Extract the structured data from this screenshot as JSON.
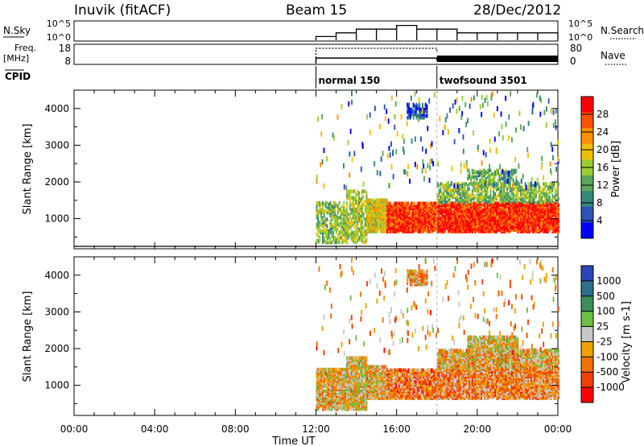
{
  "header": {
    "station": "Inuvik (fitACF)",
    "beam": "Beam 15",
    "date": "28/Dec/2012"
  },
  "sky_panel": {
    "left_label": "N.Sky",
    "right_label": "N.Search",
    "left_ticks": [
      "10^5",
      "10^0"
    ],
    "right_ticks": [
      "10^5",
      "10^0"
    ]
  },
  "freq_panel": {
    "left_label_line1": "Freq.",
    "left_label_line2": "[MHz]",
    "right_label": "Nave",
    "left_ticks": [
      "18",
      "8"
    ],
    "right_ticks": [
      "80",
      "0"
    ]
  },
  "cpid": {
    "label": "CPID",
    "modes": [
      {
        "name": "normal 150",
        "start_hour": 12.0
      },
      {
        "name": "twofsound 3501",
        "start_hour": 18.0
      }
    ]
  },
  "colors": {
    "power_scale": [
      "#0000ff",
      "#2a52b8",
      "#35877a",
      "#5aa65a",
      "#9acd32",
      "#f0c000",
      "#ff9000",
      "#ff5000",
      "#ff0000"
    ],
    "velocity_scale": [
      "#2846b4",
      "#2e6e8e",
      "#3a8f5a",
      "#6ac040",
      "#c8c8c8",
      "#f0a000",
      "#f07000",
      "#f04000",
      "#ff0000"
    ]
  },
  "chart_data": [
    {
      "type": "line",
      "panel": "sky-noise",
      "x": [
        12,
        13,
        14,
        15,
        16,
        17,
        18,
        19,
        20,
        21,
        22,
        23,
        24
      ],
      "series": [
        {
          "name": "N.Sky",
          "values": [
            1,
            2,
            3,
            3,
            4,
            3,
            3,
            2,
            2,
            2,
            2,
            2,
            2
          ]
        }
      ],
      "xlim": [
        0,
        24
      ]
    },
    {
      "type": "line",
      "panel": "frequency",
      "x": [
        12,
        18,
        18,
        24
      ],
      "series": [
        {
          "name": "Freq.",
          "values": [
            11,
            11,
            10,
            10
          ]
        }
      ],
      "ylim": [
        8,
        18
      ],
      "xlim": [
        0,
        24
      ]
    },
    {
      "type": "heatmap",
      "panel": "power",
      "ylabel": "Slant Range [km]",
      "xlabel": "Time UT",
      "x_ticks": [
        "00:00",
        "04:00",
        "08:00",
        "12:00",
        "16:00",
        "20:00",
        "00:00"
      ],
      "y_ticks": [
        "1000",
        "2000",
        "3000",
        "4000"
      ],
      "ylim": [
        180,
        4500
      ],
      "xlim": [
        0,
        24
      ],
      "colorbar": {
        "label": "Power [dB]",
        "ticks": [
          "4",
          "8",
          "12",
          "16",
          "20",
          "24",
          "28"
        ]
      },
      "regions": [
        {
          "t0": 12.0,
          "t1": 13.5,
          "r0": 300,
          "r1": 1400,
          "level": 0.45
        },
        {
          "t0": 13.5,
          "t1": 14.5,
          "r0": 300,
          "r1": 1700,
          "level": 0.5
        },
        {
          "t0": 14.5,
          "t1": 15.5,
          "r0": 600,
          "r1": 1500,
          "level": 0.6
        },
        {
          "t0": 15.5,
          "t1": 18.0,
          "r0": 600,
          "r1": 1400,
          "level": 0.85
        },
        {
          "t0": 18.0,
          "t1": 24.0,
          "r0": 600,
          "r1": 1400,
          "level": 0.9
        },
        {
          "t0": 18.0,
          "t1": 24.0,
          "r0": 1400,
          "r1": 1900,
          "level": 0.45
        },
        {
          "t0": 19.5,
          "t1": 22.0,
          "r0": 1900,
          "r1": 2300,
          "level": 0.4
        },
        {
          "t0": 16.5,
          "t1": 17.5,
          "r0": 3700,
          "r1": 4100,
          "level": 0.15
        }
      ]
    },
    {
      "type": "heatmap",
      "panel": "velocity",
      "ylabel": "Slant Range [km]",
      "xlabel": "Time UT",
      "x_ticks": [
        "00:00",
        "04:00",
        "08:00",
        "12:00",
        "16:00",
        "20:00",
        "00:00"
      ],
      "y_ticks": [
        "1000",
        "2000",
        "3000",
        "4000"
      ],
      "ylim": [
        180,
        4500
      ],
      "xlim": [
        0,
        24
      ],
      "colorbar": {
        "label": "Velocity [m s-1]",
        "ticks": [
          "1000",
          "500",
          "100",
          "25",
          "-25",
          "-100",
          "-500",
          "-1000"
        ]
      },
      "regions": [
        {
          "t0": 12.0,
          "t1": 13.5,
          "r0": 300,
          "r1": 1400,
          "level": 0.6
        },
        {
          "t0": 13.5,
          "t1": 14.5,
          "r0": 300,
          "r1": 1700,
          "level": 0.55
        },
        {
          "t0": 14.5,
          "t1": 15.5,
          "r0": 600,
          "r1": 1500,
          "level": 0.6
        },
        {
          "t0": 15.5,
          "t1": 18.0,
          "r0": 600,
          "r1": 1400,
          "level": 0.7
        },
        {
          "t0": 18.0,
          "t1": 24.0,
          "r0": 600,
          "r1": 1400,
          "level": 0.68
        },
        {
          "t0": 18.0,
          "t1": 24.0,
          "r0": 1400,
          "r1": 1900,
          "level": 0.6
        },
        {
          "t0": 19.5,
          "t1": 22.0,
          "r0": 1900,
          "r1": 2300,
          "level": 0.55
        },
        {
          "t0": 16.5,
          "t1": 17.5,
          "r0": 3700,
          "r1": 4100,
          "level": 0.6
        }
      ]
    }
  ]
}
